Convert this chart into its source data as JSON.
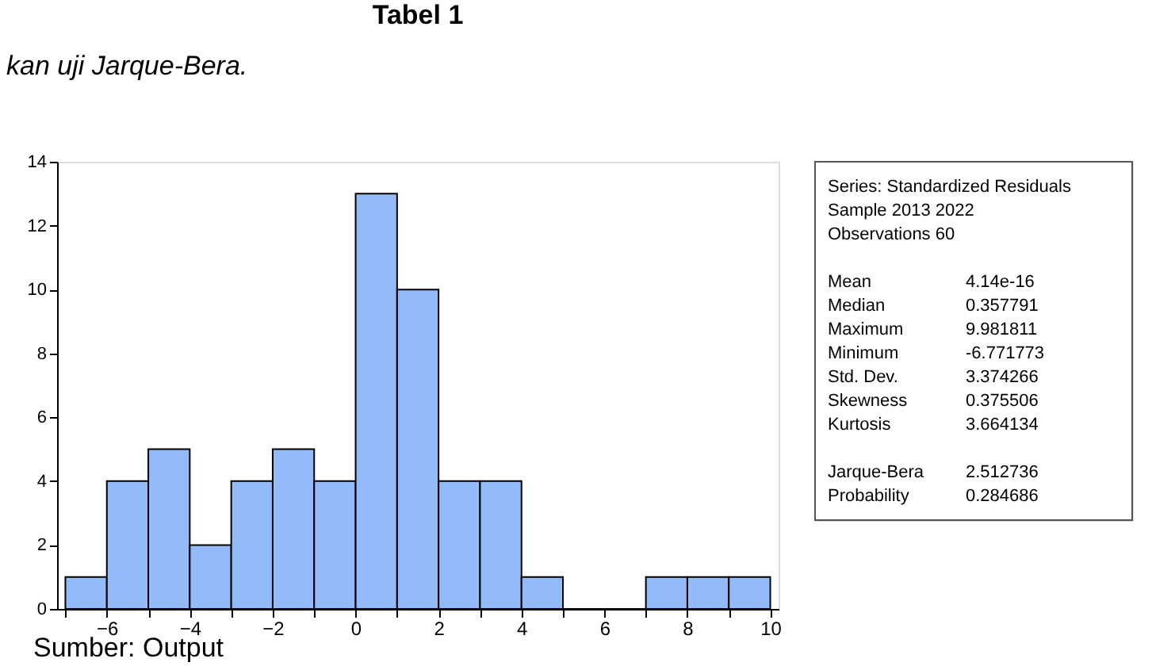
{
  "chart_data": {
    "type": "histogram",
    "title": "Tabel 1",
    "bins": [
      -7,
      -6,
      -5,
      -4,
      -3,
      -2,
      -1,
      0,
      1,
      2,
      3,
      4,
      5,
      6,
      7,
      8,
      9,
      10
    ],
    "values": [
      1,
      4,
      5,
      2,
      4,
      5,
      4,
      13,
      10,
      4,
      4,
      1,
      0,
      0,
      1,
      1,
      1
    ],
    "color": "#94bbf9",
    "xlim": [
      -7.2,
      10.2
    ],
    "xticks": [
      {
        "value": -7,
        "label": null
      },
      -6,
      {
        "value": -5,
        "label": null
      },
      -4,
      {
        "value": -3,
        "label": null
      },
      -2,
      {
        "value": -1,
        "label": null
      },
      0,
      {
        "value": 1,
        "label": null
      },
      2,
      {
        "value": 3,
        "label": null
      },
      4,
      {
        "value": 5,
        "label": null
      },
      6,
      {
        "value": 7,
        "label": null
      },
      8,
      {
        "value": 9,
        "label": null
      },
      10
    ],
    "ylim": [
      0,
      14
    ],
    "yticks": [
      0,
      2,
      4,
      6,
      8,
      10,
      12,
      14
    ],
    "grid": false,
    "annotations": [
      "kan uji Jarque-Bera.",
      "Series: Standardized Residuals",
      "Sample 2013 2022",
      "Observations 60",
      "Mean\t4.14e-16",
      "Median\t0.357791",
      "Maximum\t9.981811",
      "Minimum\t-6.771773",
      "Std. Dev.\t3.374266",
      "Skewness\t0.375506",
      "Kurtosis\t3.664134",
      "Jarque-Bera\t2.512736",
      "Probability\t0.284686",
      "Sumber: Output"
    ]
  }
}
